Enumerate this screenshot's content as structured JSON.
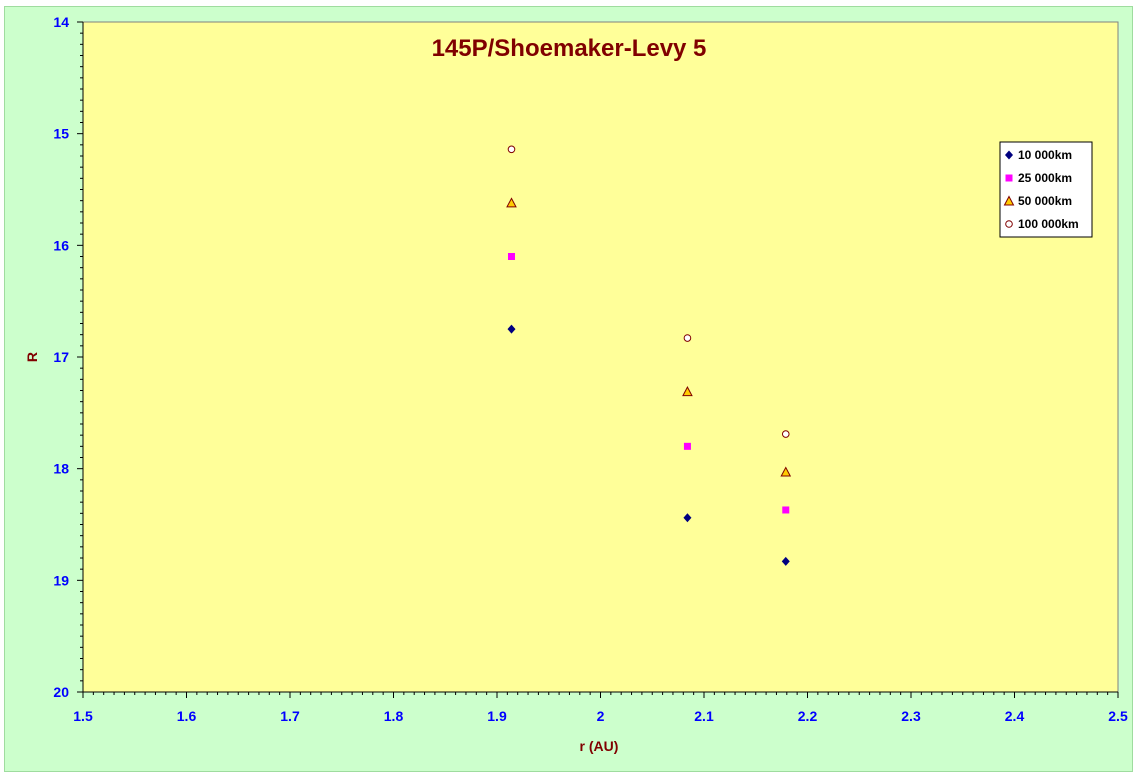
{
  "chart_data": {
    "type": "scatter",
    "title": "145P/Shoemaker-Levy 5",
    "xlabel": "r (AU)",
    "ylabel": "R",
    "xlim": [
      1.5,
      2.5
    ],
    "ylim": [
      14,
      20
    ],
    "y_inverted": true,
    "x_ticks": [
      "1.5",
      "1.6",
      "1.7",
      "1.8",
      "1.9",
      "2",
      "2.1",
      "2.2",
      "2.3",
      "2.4",
      "2.5"
    ],
    "y_ticks": [
      "14",
      "15",
      "16",
      "17",
      "18",
      "19",
      "20"
    ],
    "grid": false,
    "legend_position": "top-right",
    "series": [
      {
        "name": "10 000km",
        "marker": "diamond",
        "color": "#000080",
        "x": [
          1.914,
          2.084,
          2.179
        ],
        "y": [
          16.75,
          18.44,
          18.83
        ]
      },
      {
        "name": "25 000km",
        "marker": "square",
        "color": "#ff00ff",
        "x": [
          1.914,
          2.084,
          2.179
        ],
        "y": [
          16.1,
          17.8,
          18.37
        ]
      },
      {
        "name": "50 000km",
        "marker": "triangle",
        "color": "#ffcc00",
        "x": [
          1.914,
          2.084,
          2.179
        ],
        "y": [
          15.62,
          17.31,
          18.03
        ]
      },
      {
        "name": "100 000km",
        "marker": "circle",
        "color": "#ffffff",
        "x": [
          1.914,
          2.084,
          2.179
        ],
        "y": [
          15.14,
          16.83,
          17.69
        ]
      }
    ],
    "plot_background": "#ffff99",
    "chart_background": "#ccffcc"
  }
}
